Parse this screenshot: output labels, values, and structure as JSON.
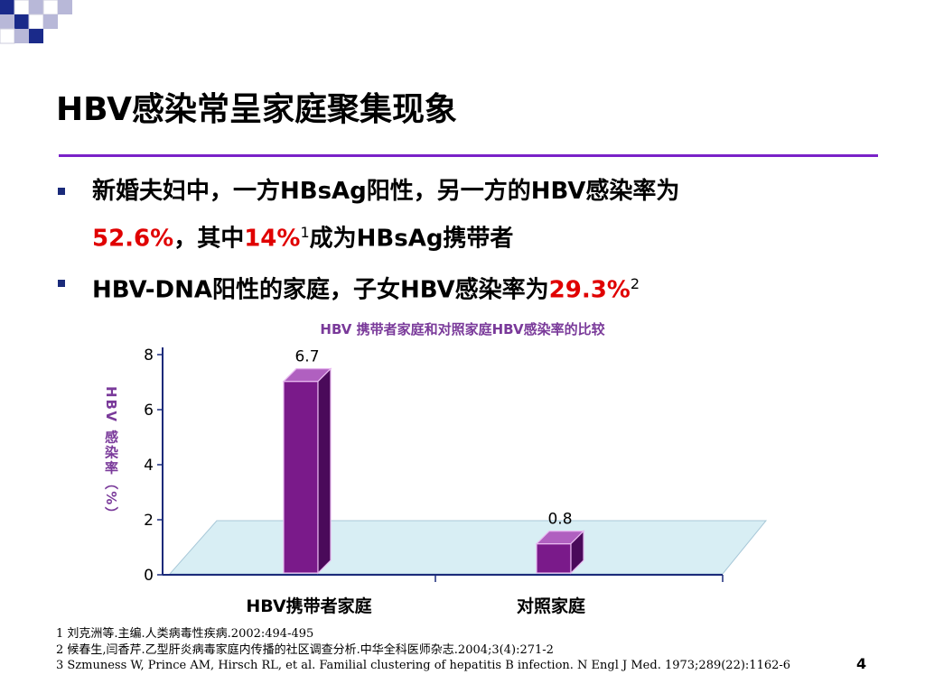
{
  "title": "HBV感染常呈家庭聚集现象",
  "bullets": [
    {
      "line1": "新婚夫妇中，一方HBsAg阳性，另一方的HBV感染率为",
      "l2_red1": "52.6%",
      "l2_mid": "，其中",
      "l2_red2": "14%",
      "l2_sup": "1",
      "l2_end": "成为HBsAg携带者"
    },
    {
      "text": "HBV-DNA阳性的家庭，子女HBV感染率为",
      "red": "29.3%",
      "sup": "2"
    }
  ],
  "chart_data": {
    "type": "bar",
    "title": "HBV 携带者家庭和对照家庭HBV感染率的比较",
    "ylabel": "HBV 感染率（%）",
    "xlabel": "",
    "categories": [
      "HBV携带者家庭",
      "对照家庭"
    ],
    "values": [
      6.7,
      0.8
    ],
    "value_labels": [
      "6.7",
      "0.8"
    ],
    "ylim": [
      0,
      8
    ],
    "yticks": [
      0,
      2,
      4,
      6,
      8
    ],
    "bar_color": "#7a1a8a",
    "floor_color": "#d8eef4",
    "grid": false
  },
  "references": [
    "1 刘克洲等.主编.人类病毒性疾病.2002:494-495",
    "2 候春生,闫香芹.乙型肝炎病毒家庭内传播的社区调查分析.中华全科医师杂志.2004;3(4):271-2",
    "3 Szmuness W, Prince AM, Hirsch RL, et al. Familial clustering of hepatitis B infection. N Engl J Med. 1973;289(22):1162-6"
  ],
  "page_number": "4"
}
